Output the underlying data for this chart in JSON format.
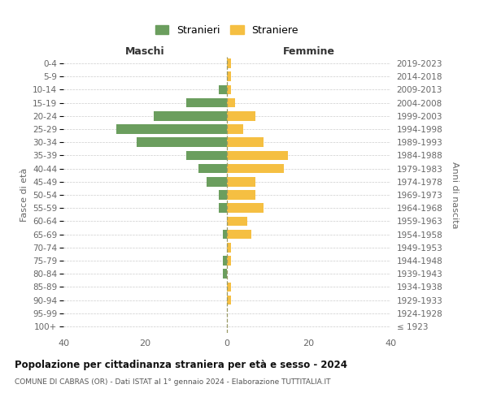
{
  "age_groups": [
    "100+",
    "95-99",
    "90-94",
    "85-89",
    "80-84",
    "75-79",
    "70-74",
    "65-69",
    "60-64",
    "55-59",
    "50-54",
    "45-49",
    "40-44",
    "35-39",
    "30-34",
    "25-29",
    "20-24",
    "15-19",
    "10-14",
    "5-9",
    "0-4"
  ],
  "birth_years": [
    "≤ 1923",
    "1924-1928",
    "1929-1933",
    "1934-1938",
    "1939-1943",
    "1944-1948",
    "1949-1953",
    "1954-1958",
    "1959-1963",
    "1964-1968",
    "1969-1973",
    "1974-1978",
    "1979-1983",
    "1984-1988",
    "1989-1993",
    "1994-1998",
    "1999-2003",
    "2004-2008",
    "2009-2013",
    "2014-2018",
    "2019-2023"
  ],
  "males": [
    0,
    0,
    0,
    0,
    1,
    1,
    0,
    1,
    0,
    2,
    2,
    5,
    7,
    10,
    22,
    27,
    18,
    10,
    2,
    0,
    0
  ],
  "females": [
    0,
    0,
    1,
    1,
    0,
    1,
    1,
    6,
    5,
    9,
    7,
    7,
    14,
    15,
    9,
    4,
    7,
    2,
    1,
    1,
    1
  ],
  "male_color": "#6b9e5e",
  "female_color": "#f5bf42",
  "male_label": "Stranieri",
  "female_label": "Straniere",
  "title": "Popolazione per cittadinanza straniera per età e sesso - 2024",
  "subtitle": "COMUNE DI CABRAS (OR) - Dati ISTAT al 1° gennaio 2024 - Elaborazione TUTTITALIA.IT",
  "header_left": "Maschi",
  "header_right": "Femmine",
  "ylabel_left": "Fasce di età",
  "ylabel_right": "Anni di nascita",
  "xlim": 40,
  "background_color": "#ffffff",
  "grid_color": "#cccccc",
  "center_line_color": "#999966"
}
